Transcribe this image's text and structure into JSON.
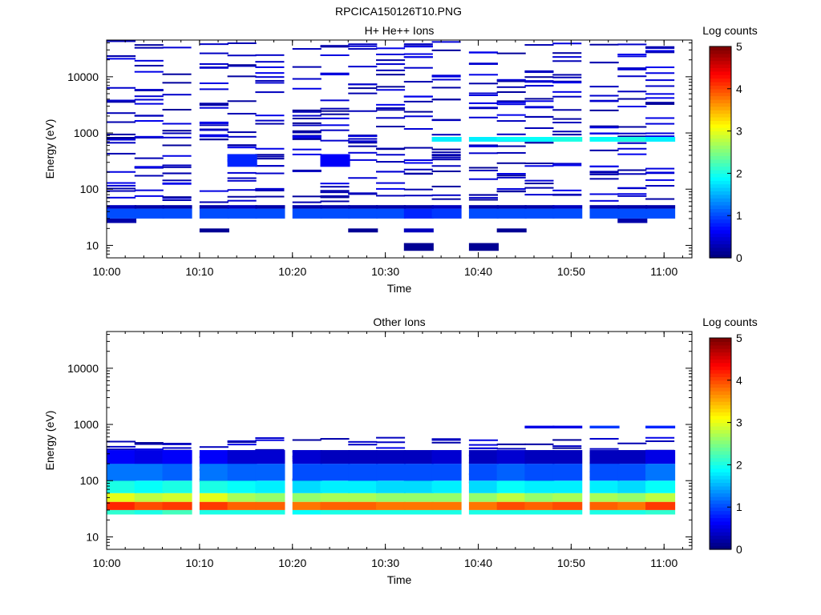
{
  "figure": {
    "title": "RPCICA150126T10.PNG"
  },
  "chart_data": [
    {
      "type": "heatmap",
      "title": "H+ He++ Ions",
      "xlabel": "Time",
      "ylabel": "Energy (eV)",
      "x_ticks": [
        "10:00",
        "10:10",
        "10:20",
        "10:30",
        "10:40",
        "10:50",
        "11:00"
      ],
      "y_ticks": [
        "10",
        "100",
        "1000",
        "10000"
      ],
      "y_scale": "log",
      "ylim": [
        6,
        45000
      ],
      "xlim": [
        "10:00",
        "11:03"
      ],
      "colorbar": {
        "label": "Log counts",
        "ticks": [
          "0",
          "1",
          "2",
          "3",
          "4",
          "5"
        ],
        "range": [
          0,
          5
        ],
        "colormap": "jet"
      },
      "time_bins_start": [
        "10:00",
        "10:03",
        "10:06",
        "10:10",
        "10:13",
        "10:16",
        "10:20",
        "10:23",
        "10:26",
        "10:29",
        "10:32",
        "10:35",
        "10:39",
        "10:42",
        "10:45",
        "10:48",
        "10:52",
        "10:55",
        "10:58"
      ],
      "bin_minutes": 3.2,
      "description_rows": [
        {
          "e_lo": 30,
          "e_hi": 45,
          "values": [
            1.0,
            1.0,
            1.0,
            1.0,
            1.0,
            1.0,
            1.0,
            1.0,
            1.0,
            1.0,
            0.8,
            0.9,
            1.0,
            1.0,
            1.0,
            1.0,
            1.0,
            1.0,
            1.0
          ]
        },
        {
          "e_lo": 25,
          "e_hi": 30,
          "values": [
            0.2,
            0,
            0,
            0,
            0,
            0,
            0,
            0,
            0,
            0,
            0,
            0,
            0,
            0,
            0,
            0,
            0,
            0.2,
            0
          ]
        },
        {
          "e_lo": 45,
          "e_hi": 52,
          "values": [
            0.3,
            0.2,
            0.2,
            0.2,
            0.3,
            0.2,
            0.2,
            0.2,
            0.2,
            0.2,
            0.2,
            0.3,
            0.2,
            0.2,
            0.2,
            0.3,
            0.2,
            0.2,
            0.2
          ]
        },
        {
          "e_lo": 700,
          "e_hi": 850,
          "values": [
            0,
            0,
            0,
            0,
            0,
            0,
            0,
            0,
            0,
            0,
            0,
            1.8,
            1.8,
            1.9,
            1.9,
            2.0,
            1.9,
            2.0,
            1.8
          ]
        },
        {
          "e_lo": 250,
          "e_hi": 420,
          "values": [
            0,
            0,
            0,
            0,
            0.8,
            0,
            0,
            0.6,
            0,
            0,
            0,
            0,
            0,
            0,
            0,
            0,
            0,
            0,
            0
          ]
        },
        {
          "e_lo": 8,
          "e_hi": 11,
          "values": [
            0,
            0,
            0,
            0,
            0,
            0,
            0,
            0,
            0,
            0,
            0.1,
            0,
            0.1,
            0,
            0,
            0,
            0,
            0,
            0
          ]
        },
        {
          "e_lo": 17,
          "e_hi": 20,
          "values": [
            0,
            0,
            0,
            0.1,
            0,
            0,
            0,
            0,
            0.1,
            0,
            0.3,
            0,
            0,
            0.1,
            0,
            0,
            0,
            0,
            0
          ]
        }
      ]
    },
    {
      "type": "heatmap",
      "title": "Other Ions",
      "xlabel": "Time",
      "ylabel": "Energy (eV)",
      "x_ticks": [
        "10:00",
        "10:10",
        "10:20",
        "10:30",
        "10:40",
        "10:50",
        "11:00"
      ],
      "y_ticks": [
        "10",
        "100",
        "1000",
        "10000"
      ],
      "y_scale": "log",
      "ylim": [
        6,
        45000
      ],
      "xlim": [
        "10:00",
        "11:03"
      ],
      "colorbar": {
        "label": "Log counts",
        "ticks": [
          "0",
          "1",
          "2",
          "3",
          "4",
          "5"
        ],
        "range": [
          0,
          5
        ],
        "colormap": "jet"
      },
      "time_bins_start": [
        "10:00",
        "10:03",
        "10:06",
        "10:10",
        "10:13",
        "10:16",
        "10:20",
        "10:23",
        "10:26",
        "10:29",
        "10:32",
        "10:35",
        "10:39",
        "10:42",
        "10:45",
        "10:48",
        "10:52",
        "10:55",
        "10:58"
      ],
      "bin_minutes": 3.2,
      "description_rows": [
        {
          "e_lo": 30,
          "e_hi": 42,
          "values": [
            4.2,
            4.0,
            4.1,
            4.1,
            3.9,
            3.9,
            3.8,
            3.9,
            3.9,
            3.8,
            3.8,
            3.8,
            3.8,
            4.0,
            3.9,
            4.0,
            3.9,
            3.8,
            4.1
          ]
        },
        {
          "e_lo": 25,
          "e_hi": 30,
          "values": [
            2.1,
            2.0,
            2.2,
            2.0,
            2.0,
            2.0,
            1.9,
            2.0,
            2.0,
            2.0,
            2.0,
            2.0,
            2.0,
            2.0,
            2.0,
            2.0,
            2.0,
            2.0,
            2.1
          ]
        },
        {
          "e_lo": 42,
          "e_hi": 60,
          "values": [
            3.0,
            2.8,
            2.9,
            3.0,
            2.7,
            2.6,
            2.6,
            2.7,
            2.7,
            2.6,
            2.6,
            2.6,
            2.6,
            2.8,
            2.6,
            2.7,
            2.7,
            2.6,
            2.8
          ]
        },
        {
          "e_lo": 60,
          "e_hi": 100,
          "values": [
            2.0,
            1.9,
            2.0,
            2.0,
            1.9,
            1.8,
            1.7,
            1.8,
            1.8,
            1.7,
            1.7,
            1.8,
            1.7,
            1.9,
            1.8,
            1.8,
            1.8,
            1.7,
            1.9
          ]
        },
        {
          "e_lo": 100,
          "e_hi": 200,
          "values": [
            1.2,
            1.2,
            1.1,
            1.2,
            1.1,
            1.1,
            1.0,
            1.0,
            1.0,
            1.0,
            1.0,
            1.0,
            1.0,
            1.1,
            1.0,
            1.0,
            1.0,
            1.0,
            1.2
          ]
        },
        {
          "e_lo": 200,
          "e_hi": 350,
          "values": [
            0.6,
            0.5,
            0.6,
            0.6,
            0.4,
            0.4,
            0.4,
            0.3,
            0.3,
            0.3,
            0.3,
            0.4,
            0.3,
            0.4,
            0.3,
            0.3,
            0.3,
            0.3,
            0.5
          ]
        },
        {
          "e_lo": 850,
          "e_hi": 950,
          "values": [
            0,
            0,
            0,
            0,
            0,
            0,
            0,
            0,
            0,
            0,
            0,
            0,
            0,
            0,
            0.5,
            0.5,
            0.9,
            0,
            0.8
          ]
        }
      ]
    }
  ]
}
